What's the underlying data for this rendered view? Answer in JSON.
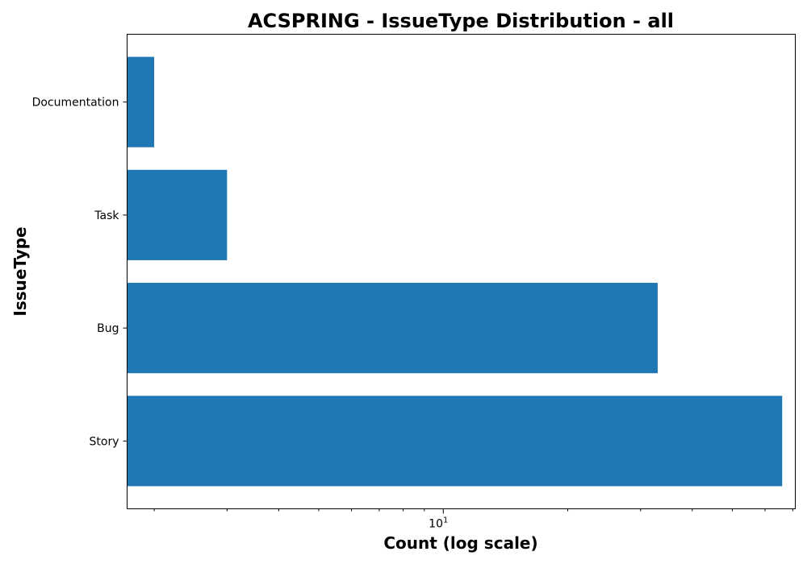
{
  "chart_data": {
    "type": "bar",
    "orientation": "horizontal",
    "title": "ACSPRING - IssueType Distribution - all",
    "xlabel": "Count (log scale)",
    "ylabel": "IssueType",
    "xscale": "log",
    "xlim": [
      1.72,
      71
    ],
    "x_major_tick": {
      "base": "10",
      "exponent": "1",
      "value": 10
    },
    "x_minor_ticks": [
      2,
      3,
      4,
      5,
      6,
      7,
      8,
      9,
      20,
      30,
      40,
      50,
      60,
      70
    ],
    "categories": [
      "Documentation",
      "Task",
      "Bug",
      "Story"
    ],
    "values": [
      2,
      3,
      33,
      66
    ],
    "bar_color": "#1f77b4",
    "grid": false,
    "legend": "none"
  }
}
